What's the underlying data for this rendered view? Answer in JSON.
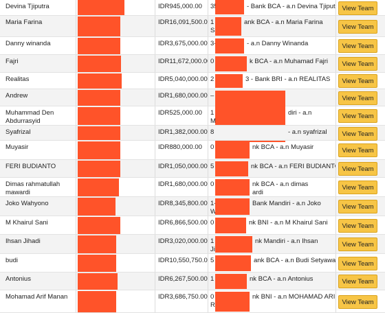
{
  "table": {
    "button_label": "View Team",
    "rows": [
      {
        "name": "Devina Tjiputra",
        "amount": "IDR945,000.00",
        "prefix": "35",
        "info": "- Bank BCA - a.n Devina Tjiputra"
      },
      {
        "name": "Maria Farina",
        "amount": "IDR16,091,500.00",
        "prefix": "1",
        "info": "ank BCA - a.n Maria Farina",
        "prefix2": "Sa"
      },
      {
        "name": "Danny winanda",
        "amount": "IDR3,675,000.00",
        "prefix": "3-",
        "info": "- a.n Danny Winanda"
      },
      {
        "name": "Fajri",
        "amount": "IDR11,672,000.00",
        "prefix": "0",
        "info": "k BCA - a.n Muhamad Fajri"
      },
      {
        "name": "Realitas",
        "amount": "IDR5,040,000.00",
        "prefix": "2",
        "info": "3 - Bank BRI - a.n REALITAS"
      },
      {
        "name": "Andrew",
        "amount": "IDR1,680,000.00",
        "prefix": "–"
      },
      {
        "name": "Muhammad Den Abdurrasyid",
        "amount": "IDR525,000.00",
        "prefix": "1",
        "info": "diri - a.n",
        "prefix2": "M"
      },
      {
        "name": "Syafrizal",
        "amount": "IDR1,382,000.00",
        "prefix": "8",
        "info": "- a.n syafrizal"
      },
      {
        "name": "Muyasir",
        "amount": "IDR880,000.00",
        "prefix": "0",
        "info": "nk BCA - a.n Muyasir"
      },
      {
        "name": "FERI BUDIANTO",
        "amount": "IDR1,050,000.00",
        "prefix": "5",
        "info": "nk BCA - a.n FERI BUDIANTO"
      },
      {
        "name": "Dimas rahmatullah mawardi",
        "amount": "IDR1,680,000.00",
        "prefix": "0",
        "info": "nk BCA - a.n dimas",
        "info2": "ardi"
      },
      {
        "name": "Joko Wahyono",
        "amount": "IDR8,345,800.00",
        "prefix": "1-",
        "info": "Bank Mandiri - a.n Joko",
        "prefix2": "W"
      },
      {
        "name": "M Khairul Sani",
        "amount": "IDR6,866,500.00",
        "prefix": "0",
        "info": "nk BNI - a.n M Khairul Sani"
      },
      {
        "name": "Ihsan Jihadi",
        "amount": "IDR3,020,000.00",
        "prefix": "1",
        "info": "nk Mandiri - a.n Ihsan",
        "prefix2": "Ji"
      },
      {
        "name": "budi",
        "amount": "IDR10,550,750.00",
        "prefix": "5",
        "info": "ank BCA - a.n Budi Setyawan"
      },
      {
        "name": "Antonius",
        "amount": "IDR6,267,500.00",
        "prefix": "1",
        "info": "nk BCA - a.n Antonius"
      },
      {
        "name": "Mohamad Arif Manan",
        "amount": "IDR3,686,750.00",
        "prefix": "0",
        "info": "nk BNI - a.n MOHAMAD ARIF",
        "prefix2": "R"
      }
    ]
  }
}
